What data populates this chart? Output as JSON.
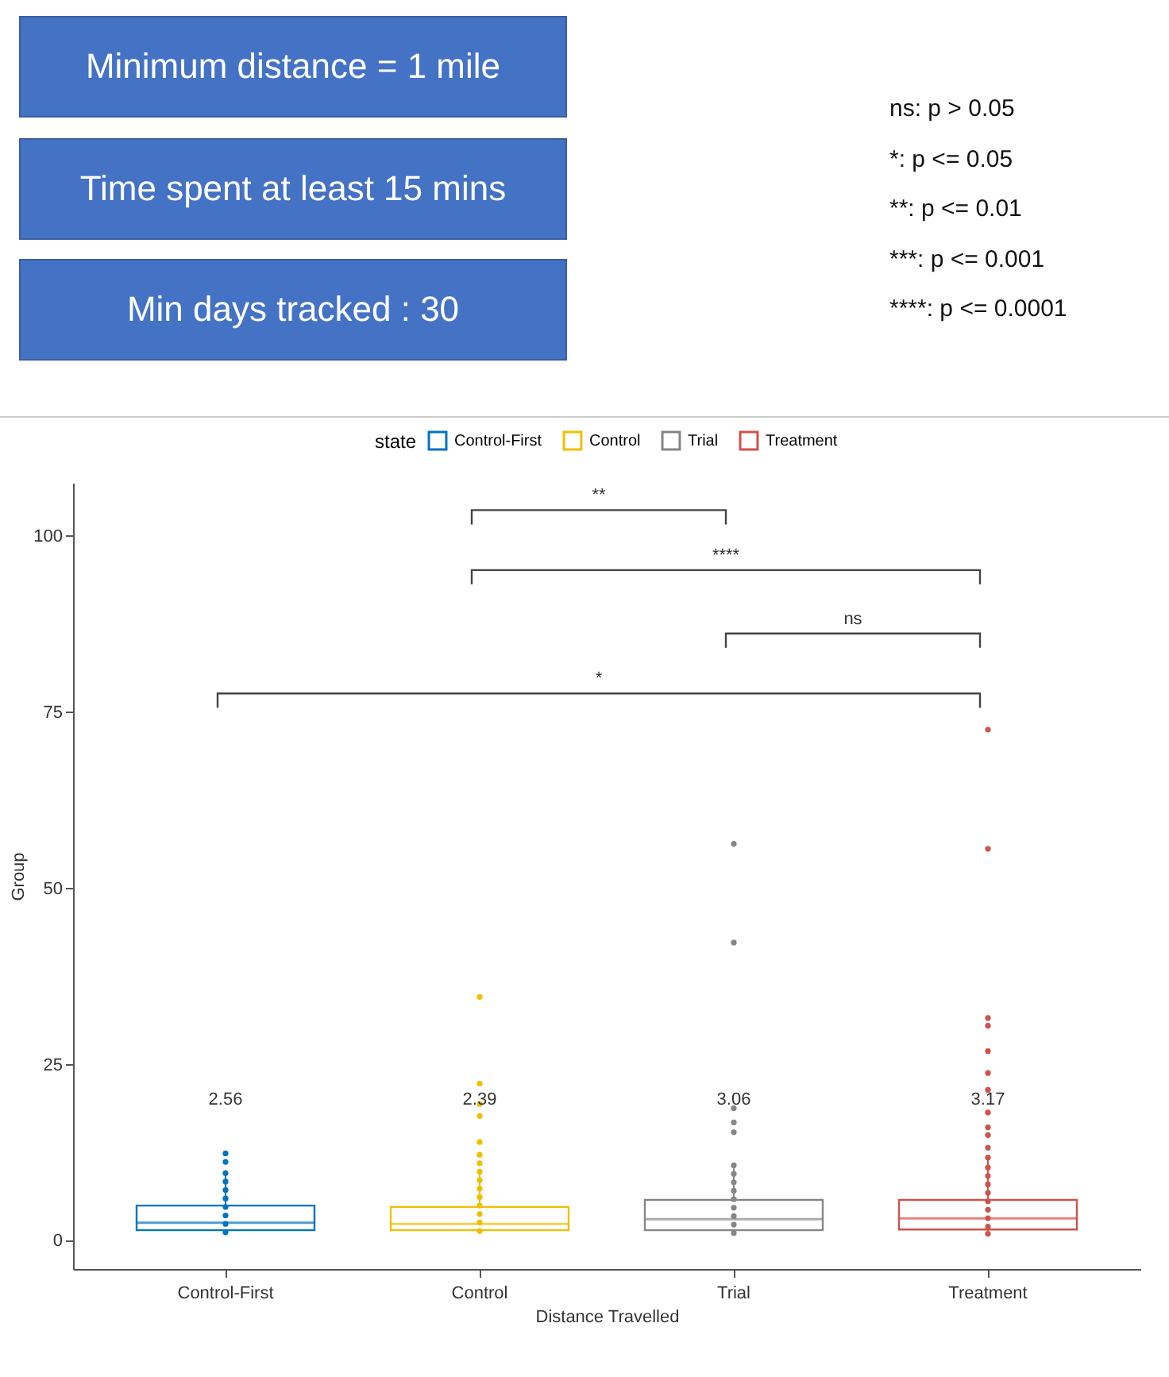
{
  "chart_data": {
    "type": "box",
    "xlabel": "Distance Travelled",
    "ylabel": "Group",
    "legend_title": "state",
    "legend": "top",
    "grid": false,
    "categories": [
      "Control-First",
      "Control",
      "Trial",
      "Treatment"
    ],
    "ylim": [
      -4,
      107.5
    ],
    "yticks": [
      0,
      25,
      50,
      75,
      100
    ],
    "annotations": [
      "Minimum distance = 1 mile",
      "Time spent at least 15 mins",
      "Min days tracked : 30",
      "ns: p > 0.05",
      "*: p <= 0.05",
      "**: p <= 0.01",
      "***: p <= 0.001",
      "****: p <= 0.0001",
      "**",
      "****",
      "ns",
      "*",
      "2.56",
      "2.39",
      "3.06",
      "3.17"
    ],
    "series": [
      {
        "name": "Control-First",
        "color": "#0073c2",
        "boxes": [
          {
            "low": 1,
            "q1": 1.5,
            "median": 2.56,
            "q3": 5.0,
            "high": 10
          },
          null,
          null,
          null
        ]
      },
      {
        "name": "Control",
        "color": "#efc000",
        "boxes": [
          null,
          {
            "low": 1,
            "q1": 1.5,
            "median": 2.39,
            "q3": 4.8,
            "high": 9.8
          },
          null,
          null
        ]
      },
      {
        "name": "Trial",
        "color": "#868686",
        "boxes": [
          null,
          null,
          {
            "low": 1,
            "q1": 1.5,
            "median": 3.06,
            "q3": 5.8,
            "high": 11
          },
          null
        ]
      },
      {
        "name": "Treatment",
        "color": "#cd534c",
        "boxes": [
          null,
          null,
          null,
          {
            "low": 1,
            "q1": 1.6,
            "median": 3.17,
            "q3": 5.8,
            "high": 12
          }
        ]
      },
      {
        "type": "scatter",
        "color": "#0073c2",
        "x": [
          "Control-First",
          "Control-First",
          "Control-First",
          "Control-First",
          "Control-First",
          "Control-First",
          "Control-First",
          "Control-First",
          "Control-First",
          "Control-First"
        ],
        "values": [
          12.4,
          11.2,
          9.6,
          8.4,
          7.2,
          6.0,
          4.8,
          3.6,
          2.4,
          1.2
        ]
      },
      {
        "type": "scatter",
        "color": "#efc000",
        "x": [
          "Control",
          "Control",
          "Control",
          "Control",
          "Control",
          "Control",
          "Control",
          "Control",
          "Control",
          "Control",
          "Control",
          "Control",
          "Control",
          "Control",
          "Control"
        ],
        "values": [
          34.6,
          22.3,
          19.4,
          17.7,
          14.0,
          12.2,
          11.0,
          9.8,
          8.6,
          7.4,
          6.2,
          5.0,
          3.8,
          2.6,
          1.4
        ]
      },
      {
        "type": "scatter",
        "color": "#868686",
        "x": [
          "Trial",
          "Trial",
          "Trial",
          "Trial",
          "Trial",
          "Trial",
          "Trial",
          "Trial",
          "Trial",
          "Trial",
          "Trial",
          "Trial",
          "Trial",
          "Trial"
        ],
        "values": [
          56.3,
          42.3,
          18.8,
          16.8,
          15.4,
          10.7,
          9.5,
          8.3,
          7.1,
          5.9,
          4.7,
          3.5,
          2.3,
          1.1
        ]
      },
      {
        "type": "scatter",
        "color": "#cd534c",
        "x": [
          "Treatment",
          "Treatment",
          "Treatment",
          "Treatment",
          "Treatment",
          "Treatment",
          "Treatment",
          "Treatment",
          "Treatment",
          "Treatment",
          "Treatment",
          "Treatment",
          "Treatment",
          "Treatment",
          "Treatment",
          "Treatment",
          "Treatment",
          "Treatment",
          "Treatment",
          "Treatment",
          "Treatment"
        ],
        "values": [
          72.5,
          55.6,
          31.6,
          30.5,
          26.9,
          23.8,
          21.4,
          18.2,
          16.1,
          15.0,
          13.2,
          11.8,
          10.4,
          9.2,
          8.0,
          6.8,
          5.6,
          4.4,
          3.2,
          2.0,
          1.0
        ]
      }
    ]
  }
}
